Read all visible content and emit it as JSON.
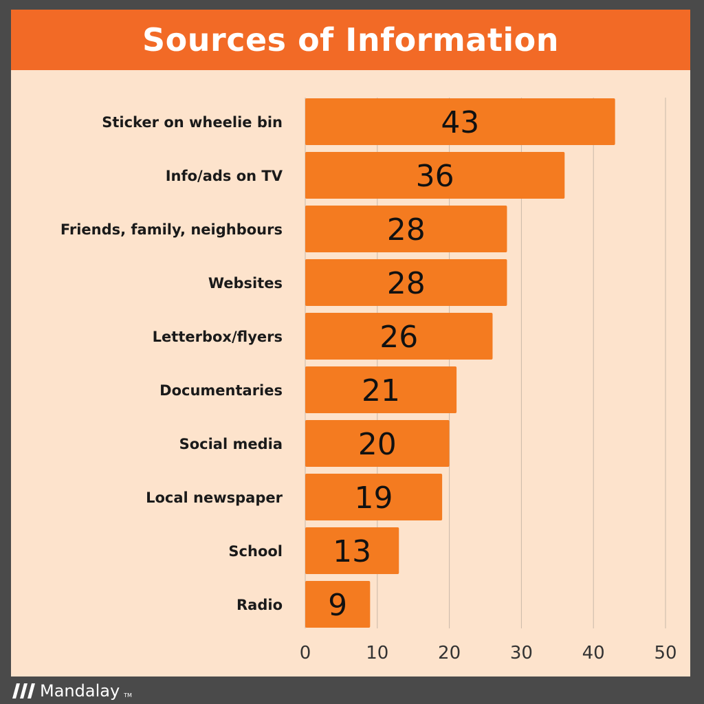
{
  "chart_data": {
    "type": "bar",
    "orientation": "horizontal",
    "title": "Sources of Information",
    "categories": [
      "Sticker on wheelie bin",
      "Info/ads on TV",
      "Friends, family, neighbours",
      "Websites",
      "Letterbox/flyers",
      "Documentaries",
      "Social media",
      "Local newspaper",
      "School",
      "Radio"
    ],
    "values": [
      43,
      36,
      28,
      28,
      26,
      21,
      20,
      19,
      13,
      9
    ],
    "xlim": [
      0,
      50
    ],
    "xticks": [
      0,
      10,
      20,
      30,
      40,
      50
    ],
    "grid": true,
    "data_labels": true
  },
  "colors": {
    "background": "#4a4a4a",
    "panel": "#fde3cc",
    "header": "#f26a26",
    "bar": "#f47b20",
    "gridline": "#c9b8a8",
    "label_text": "#1a1a1a",
    "axis_text": "#333333"
  },
  "footer": {
    "brand": "Mandalay",
    "trademark": "TM",
    "logo_icon": "three-slash-logo-icon"
  }
}
